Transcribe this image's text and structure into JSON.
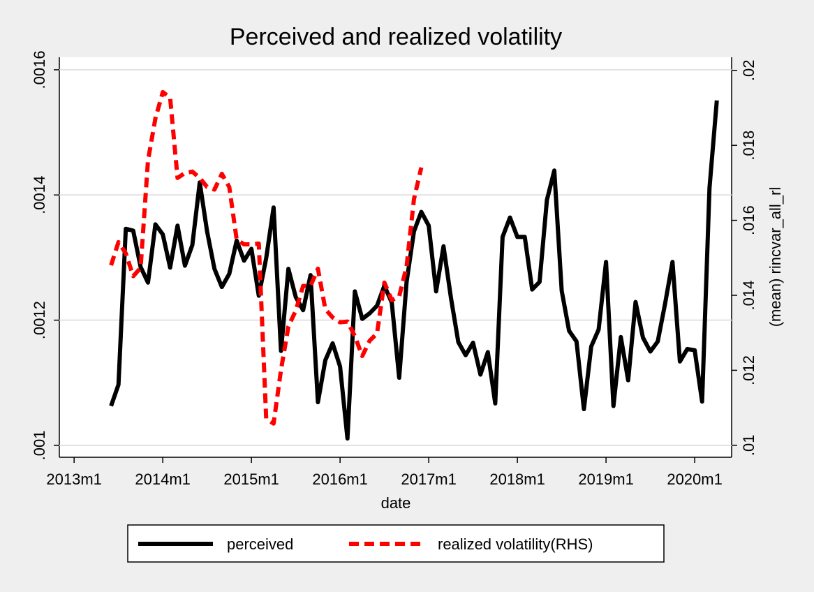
{
  "chart_data": {
    "type": "line",
    "title": "Perceived and realized volatility",
    "xlabel": "date",
    "y2label": "(mean) rincvar_all_rl",
    "x": [
      "2013m6",
      "2013m7",
      "2013m8",
      "2013m9",
      "2013m10",
      "2013m11",
      "2013m12",
      "2014m1",
      "2014m2",
      "2014m3",
      "2014m4",
      "2014m5",
      "2014m6",
      "2014m7",
      "2014m8",
      "2014m9",
      "2014m10",
      "2014m11",
      "2014m12",
      "2015m1",
      "2015m2",
      "2015m3",
      "2015m4",
      "2015m5",
      "2015m6",
      "2015m7",
      "2015m8",
      "2015m9",
      "2015m10",
      "2015m11",
      "2015m12",
      "2016m1",
      "2016m2",
      "2016m3",
      "2016m4",
      "2016m5",
      "2016m6",
      "2016m7",
      "2016m8",
      "2016m9",
      "2016m10",
      "2016m11",
      "2016m12",
      "2017m1",
      "2017m2",
      "2017m3",
      "2017m4",
      "2017m5",
      "2017m6",
      "2017m7",
      "2017m8",
      "2017m9",
      "2017m10",
      "2017m11",
      "2017m12",
      "2018m1",
      "2018m2",
      "2018m3",
      "2018m4",
      "2018m5",
      "2018m6",
      "2018m7",
      "2018m8",
      "2018m9",
      "2018m10",
      "2018m11",
      "2018m12",
      "2019m1",
      "2019m2",
      "2019m3",
      "2019m4",
      "2019m5",
      "2019m6",
      "2019m7",
      "2019m8",
      "2019m9",
      "2019m10",
      "2019m11",
      "2019m12",
      "2020m1",
      "2020m2",
      "2020m3",
      "2020m4"
    ],
    "series": [
      {
        "name": "perceived",
        "color": "#000000",
        "dashed": false,
        "values": [
          0.001063,
          0.001097,
          0.001346,
          0.001343,
          0.001285,
          0.00126,
          0.001353,
          0.001337,
          0.001284,
          0.001351,
          0.001287,
          0.00132,
          0.00142,
          0.001342,
          0.001282,
          0.001253,
          0.001274,
          0.001327,
          0.001295,
          0.001314,
          0.001239,
          0.001299,
          0.00138,
          0.001151,
          0.001282,
          0.001237,
          0.001216,
          0.001272,
          0.001069,
          0.001136,
          0.001163,
          0.001126,
          0.001011,
          0.001246,
          0.001202,
          0.001211,
          0.001223,
          0.001255,
          0.001228,
          0.001108,
          0.001261,
          0.001342,
          0.001373,
          0.001351,
          0.001246,
          0.001318,
          0.001236,
          0.001165,
          0.001144,
          0.001164,
          0.001113,
          0.001149,
          0.001067,
          0.001333,
          0.001364,
          0.001333,
          0.001333,
          0.001249,
          0.001261,
          0.001392,
          0.001439,
          0.001247,
          0.001183,
          0.001166,
          0.001058,
          0.001158,
          0.001185,
          0.001293,
          0.001063,
          0.001173,
          0.001104,
          0.001229,
          0.001172,
          0.00115,
          0.001166,
          0.001227,
          0.001293,
          0.001134,
          0.001154,
          0.001152,
          0.00107,
          0.001411,
          0.001551
        ]
      },
      {
        "name": "realized volatility(RHS)",
        "color": "#ff0000",
        "dashed": true,
        "axis": "y2",
        "values": [
          0.0148,
          0.01542,
          0.01512,
          0.01451,
          0.01473,
          0.0176,
          0.01872,
          0.01942,
          0.01927,
          0.01713,
          0.01726,
          0.0173,
          0.01713,
          0.01689,
          0.01682,
          0.01724,
          0.01689,
          0.01549,
          0.01536,
          0.01536,
          0.01538,
          0.01071,
          0.01058,
          0.01201,
          0.01317,
          0.01359,
          0.01425,
          0.01425,
          0.01471,
          0.01363,
          0.01341,
          0.01328,
          0.0133,
          0.01291,
          0.01238,
          0.01279,
          0.01298,
          0.01434,
          0.01387,
          0.01397,
          0.01477,
          0.01657,
          0.01741,
          null,
          null,
          null,
          null,
          null,
          null,
          null,
          null,
          null,
          null,
          null,
          null,
          null,
          null,
          null,
          null,
          null,
          null,
          null,
          null,
          null,
          null,
          null,
          null,
          null,
          null,
          null,
          null,
          null,
          null,
          null,
          null,
          null,
          null,
          null,
          null,
          null,
          null,
          null,
          null
        ]
      }
    ],
    "xlim": [
      "2012m11",
      "2020m6"
    ],
    "xticks": [
      "2013m1",
      "2014m1",
      "2015m1",
      "2016m1",
      "2017m1",
      "2018m1",
      "2019m1",
      "2020m1"
    ],
    "ylim": [
      0.000981,
      0.00162
    ],
    "yticks": [
      {
        "value": 0.001,
        "label": ".001"
      },
      {
        "value": 0.0012,
        "label": ".0012"
      },
      {
        "value": 0.0014,
        "label": ".0014"
      },
      {
        "value": 0.0016,
        "label": ".0016"
      }
    ],
    "y2lim": [
      0.00968,
      0.02035
    ],
    "y2ticks": [
      {
        "value": 0.01,
        "label": ".01"
      },
      {
        "value": 0.012,
        "label": ".012"
      },
      {
        "value": 0.014,
        "label": ".014"
      },
      {
        "value": 0.016,
        "label": ".016"
      },
      {
        "value": 0.018,
        "label": ".018"
      },
      {
        "value": 0.02,
        "label": ".02"
      }
    ],
    "grid": true,
    "legend": "bottom"
  }
}
